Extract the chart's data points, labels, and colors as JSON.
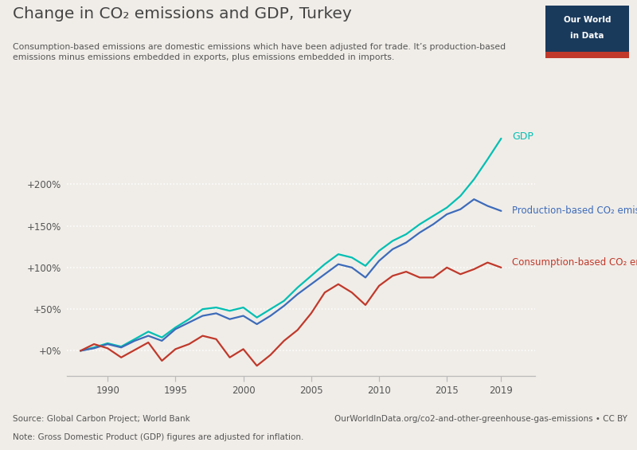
{
  "title": "Change in CO₂ emissions and GDP, Turkey",
  "subtitle": "Consumption-based emissions are domestic emissions which have been adjusted for trade. It’s production-based\nemissions minus emissions embedded in exports, plus emissions embedded in imports.",
  "source_text": "Source: Global Carbon Project; World Bank",
  "note_text": "Note: Gross Domestic Product (GDP) figures are adjusted for inflation.",
  "url_text": "OurWorldInData.org/co2-and-other-greenhouse-gas-emissions • CC BY",
  "background_color": "#f0ede8",
  "plot_bg_color": "#f0ede8",
  "grid_color": "#ffffff",
  "years": [
    1988,
    1989,
    1990,
    1991,
    1992,
    1993,
    1994,
    1995,
    1996,
    1997,
    1998,
    1999,
    2000,
    2001,
    2002,
    2003,
    2004,
    2005,
    2006,
    2007,
    2008,
    2009,
    2010,
    2011,
    2012,
    2013,
    2014,
    2015,
    2016,
    2017,
    2018,
    2019
  ],
  "gdp": [
    0,
    4,
    9,
    5,
    14,
    23,
    16,
    28,
    38,
    50,
    52,
    48,
    52,
    40,
    50,
    60,
    76,
    90,
    104,
    116,
    112,
    102,
    120,
    132,
    140,
    152,
    162,
    172,
    186,
    206,
    230,
    255
  ],
  "production_co2": [
    0,
    3,
    8,
    4,
    12,
    18,
    12,
    26,
    34,
    42,
    45,
    38,
    42,
    32,
    42,
    54,
    68,
    80,
    92,
    104,
    100,
    88,
    108,
    122,
    130,
    142,
    152,
    164,
    170,
    182,
    174,
    168
  ],
  "consumption_co2": [
    0,
    8,
    3,
    -8,
    1,
    10,
    -12,
    2,
    8,
    18,
    14,
    -8,
    2,
    -18,
    -5,
    12,
    25,
    45,
    70,
    80,
    70,
    55,
    78,
    90,
    95,
    88,
    88,
    100,
    92,
    98,
    106,
    100
  ],
  "gdp_color": "#00bfb3",
  "production_co2_color": "#3d6bba",
  "consumption_co2_color": "#c0392b",
  "ylim": [
    -30,
    270
  ],
  "yticks": [
    0,
    50,
    100,
    150,
    200
  ],
  "ytick_labels": [
    "+0%",
    "+50%",
    "+100%",
    "+150%",
    "+200%"
  ],
  "xlabel_years": [
    1990,
    1995,
    2000,
    2005,
    2010,
    2015,
    2019
  ],
  "title_color": "#444444",
  "subtitle_color": "#555555",
  "axis_color": "#bbbbbb",
  "tick_color": "#555555",
  "footer_color": "#555555"
}
